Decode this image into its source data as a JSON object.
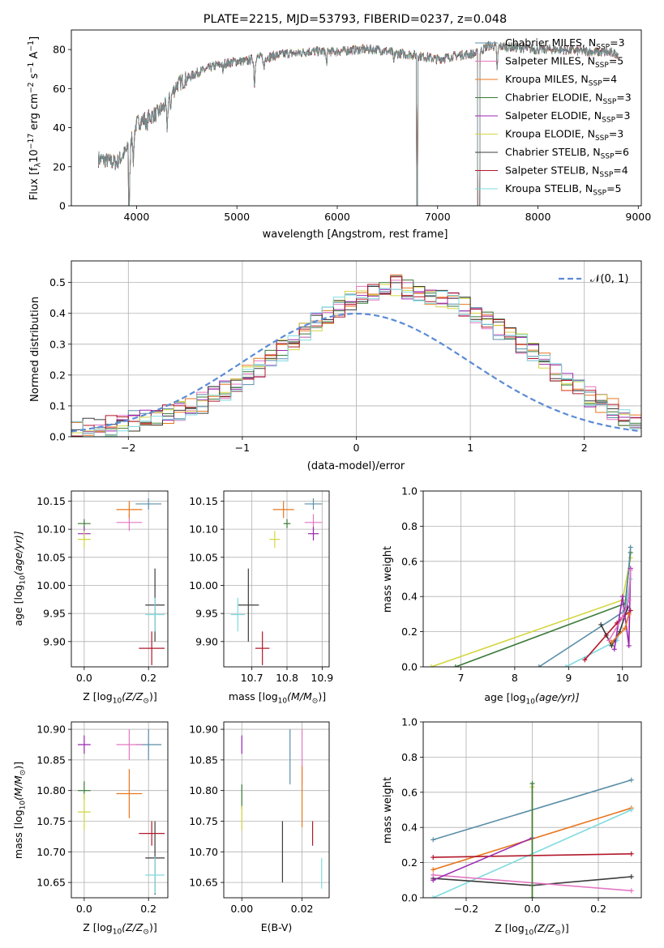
{
  "colors": {
    "Chabrier MILES": "#5b8fa8",
    "Salpeter MILES": "#e377c2",
    "Kroupa MILES": "#e8771e",
    "Chabrier ELODIE": "#3a7a3a",
    "Salpeter ELODIE": "#9b27b0",
    "Kroupa ELODIE": "#d4d640",
    "Chabrier STELIB": "#3c3c3c",
    "Salpeter STELIB": "#b2182b",
    "Kroupa STELIB": "#7fdbe0",
    "gaussian": "#5b8bd6"
  },
  "chart_data": [
    {
      "id": "spectrum",
      "type": "line",
      "title": "PLATE=2215, MJD=53793, FIBERID=0237, z=0.048",
      "xlabel": "wavelength [Angstrom, rest frame]",
      "ylabel": "Flux [f$_\\lambda$10$^{-17}$ erg cm$^{-2}$ s$^{-1}$ A$^{-1}$]",
      "ylabel_parts": [
        "Flux [f",
        "λ",
        "10",
        "−17",
        " erg cm",
        "−2",
        " s",
        "−1",
        " A",
        "−1",
        "]"
      ],
      "xlim": [
        3350,
        9030
      ],
      "ylim": [
        0,
        90
      ],
      "xticks": [
        4000,
        5000,
        6000,
        7000,
        8000,
        9000
      ],
      "yticks": [
        0,
        20,
        40,
        60,
        80
      ],
      "continuum": [
        [
          3620,
          24
        ],
        [
          3800,
          22
        ],
        [
          3900,
          28
        ],
        [
          4000,
          42
        ],
        [
          4100,
          45
        ],
        [
          4200,
          47
        ],
        [
          4300,
          52
        ],
        [
          4400,
          62
        ],
        [
          4500,
          65
        ],
        [
          4600,
          68
        ],
        [
          4700,
          70
        ],
        [
          4800,
          72
        ],
        [
          4900,
          73
        ],
        [
          5000,
          74
        ],
        [
          5100,
          74
        ],
        [
          5200,
          76
        ],
        [
          5300,
          76
        ],
        [
          5400,
          77
        ],
        [
          5500,
          78
        ],
        [
          5600,
          78
        ],
        [
          5700,
          79
        ],
        [
          5800,
          79
        ],
        [
          5900,
          79
        ],
        [
          6000,
          79
        ],
        [
          6200,
          80
        ],
        [
          6400,
          80
        ],
        [
          6600,
          78
        ],
        [
          6800,
          77
        ],
        [
          7000,
          75
        ],
        [
          7100,
          76
        ],
        [
          7200,
          77
        ],
        [
          7400,
          78
        ],
        [
          7500,
          82
        ],
        [
          7800,
          81
        ],
        [
          8000,
          80
        ],
        [
          8200,
          80
        ],
        [
          8500,
          79
        ],
        [
          8800,
          78
        ]
      ],
      "absorption_lines": [
        [
          3934,
          16
        ],
        [
          3969,
          14
        ],
        [
          4101,
          6
        ],
        [
          4304,
          12
        ],
        [
          4340,
          5
        ],
        [
          4861,
          4
        ],
        [
          5175,
          14
        ],
        [
          5270,
          6
        ],
        [
          5893,
          6
        ],
        [
          6563,
          5
        ],
        [
          7594,
          12
        ]
      ],
      "masked_regions": [
        [
          3918,
          3928
        ],
        [
          6790,
          6800
        ],
        [
          7398,
          7420
        ]
      ],
      "series": [
        {
          "name": "Chabrier MILES",
          "nssp": "3"
        },
        {
          "name": "Salpeter MILES",
          "nssp": "5"
        },
        {
          "name": "Kroupa MILES",
          "nssp": "4"
        },
        {
          "name": "Chabrier ELODIE",
          "nssp": "3"
        },
        {
          "name": "Salpeter ELODIE",
          "nssp": "3"
        },
        {
          "name": "Kroupa ELODIE",
          "nssp": "3"
        },
        {
          "name": "Chabrier STELIB",
          "nssp": "6"
        },
        {
          "name": "Salpeter STELIB",
          "nssp": "4"
        },
        {
          "name": "Kroupa STELIB",
          "nssp": "5"
        }
      ],
      "legend_position": "top-right"
    },
    {
      "id": "residuals",
      "type": "step",
      "xlabel": "(data-model)/error",
      "ylabel": "Normed distribution",
      "xlim": [
        -2.5,
        2.5
      ],
      "ylim": [
        0,
        0.57
      ],
      "xticks": [
        -2,
        -1,
        0,
        1,
        2
      ],
      "yticks": [
        0.0,
        0.1,
        0.2,
        0.3,
        0.4,
        0.5
      ],
      "bin_width": 0.1,
      "bin_start": -2.5,
      "base_profile": [
        0.02,
        0.025,
        0.03,
        0.035,
        0.04,
        0.05,
        0.055,
        0.06,
        0.07,
        0.085,
        0.1,
        0.11,
        0.13,
        0.15,
        0.175,
        0.2,
        0.22,
        0.25,
        0.28,
        0.31,
        0.34,
        0.37,
        0.4,
        0.42,
        0.44,
        0.46,
        0.47,
        0.48,
        0.49,
        0.48,
        0.47,
        0.46,
        0.45,
        0.44,
        0.42,
        0.4,
        0.38,
        0.35,
        0.32,
        0.3,
        0.27,
        0.24,
        0.21,
        0.18,
        0.155,
        0.13,
        0.11,
        0.09,
        0.07,
        0.06
      ],
      "gaussian_label": "𝒩(0, 1)",
      "legend_position": "top-right",
      "grid": true
    },
    {
      "id": "age_vs_Z",
      "type": "errorbar",
      "xlabel_parts": [
        "Z [log",
        "10",
        "(Z/Z",
        "⊙",
        ")]"
      ],
      "ylabel_parts": [
        "age  [log",
        "10",
        "(age/yr)]"
      ],
      "xlim": [
        -0.04,
        0.26
      ],
      "ylim": [
        9.855,
        10.168
      ],
      "xticks": [
        0.0,
        0.2
      ],
      "yticks": [
        9.9,
        9.95,
        10.0,
        10.05,
        10.1,
        10.15
      ],
      "grid": true,
      "points": [
        {
          "series": "Chabrier MILES",
          "x": 0.2,
          "xerr": 0.04,
          "y": 10.145,
          "yerr": 0.01
        },
        {
          "series": "Salpeter MILES",
          "x": 0.14,
          "xerr": 0.04,
          "y": 10.112,
          "yerr": 0.015
        },
        {
          "series": "Kroupa MILES",
          "x": 0.14,
          "xerr": 0.04,
          "y": 10.135,
          "yerr": 0.015
        },
        {
          "series": "Chabrier ELODIE",
          "x": 0.0,
          "xerr": 0.02,
          "y": 10.11,
          "yerr": 0.008
        },
        {
          "series": "Salpeter ELODIE",
          "x": 0.0,
          "xerr": 0.02,
          "y": 10.092,
          "yerr": 0.012
        },
        {
          "series": "Kroupa ELODIE",
          "x": 0.0,
          "xerr": 0.02,
          "y": 10.082,
          "yerr": 0.015
        },
        {
          "series": "Chabrier STELIB",
          "x": 0.22,
          "xerr": 0.03,
          "y": 9.965,
          "yerr": 0.065
        },
        {
          "series": "Salpeter STELIB",
          "x": 0.21,
          "xerr": 0.04,
          "y": 9.888,
          "yerr": 0.03
        },
        {
          "series": "Kroupa STELIB",
          "x": 0.22,
          "xerr": 0.03,
          "y": 9.948,
          "yerr": 0.03
        }
      ]
    },
    {
      "id": "age_vs_mass",
      "type": "errorbar",
      "xlabel_parts": [
        "mass [log",
        "10",
        "(M/M",
        "⊙",
        ")]"
      ],
      "ylabel": "",
      "xlim": [
        10.62,
        10.92
      ],
      "ylim": [
        9.855,
        10.168
      ],
      "xticks": [
        10.7,
        10.8,
        10.9
      ],
      "yticks": [
        9.9,
        9.95,
        10.0,
        10.05,
        10.1,
        10.15
      ],
      "grid": true,
      "points": [
        {
          "series": "Chabrier MILES",
          "x": 10.875,
          "xerr": 0.025,
          "y": 10.145,
          "yerr": 0.01
        },
        {
          "series": "Salpeter MILES",
          "x": 10.875,
          "xerr": 0.025,
          "y": 10.112,
          "yerr": 0.015
        },
        {
          "series": "Kroupa MILES",
          "x": 10.79,
          "xerr": 0.03,
          "y": 10.135,
          "yerr": 0.015
        },
        {
          "series": "Chabrier ELODIE",
          "x": 10.8,
          "xerr": 0.01,
          "y": 10.11,
          "yerr": 0.008
        },
        {
          "series": "Salpeter ELODIE",
          "x": 10.875,
          "xerr": 0.015,
          "y": 10.092,
          "yerr": 0.012
        },
        {
          "series": "Kroupa ELODIE",
          "x": 10.765,
          "xerr": 0.015,
          "y": 10.082,
          "yerr": 0.015
        },
        {
          "series": "Chabrier STELIB",
          "x": 10.69,
          "xerr": 0.03,
          "y": 9.965,
          "yerr": 0.065
        },
        {
          "series": "Salpeter STELIB",
          "x": 10.73,
          "xerr": 0.02,
          "y": 9.888,
          "yerr": 0.03
        },
        {
          "series": "Kroupa STELIB",
          "x": 10.66,
          "xerr": 0.02,
          "y": 9.948,
          "yerr": 0.03
        }
      ]
    },
    {
      "id": "mass_vs_Z",
      "type": "errorbar",
      "xlabel_parts": [
        "Z [log",
        "10",
        "(Z/Z",
        "⊙",
        ")]"
      ],
      "ylabel_parts": [
        "mass [log",
        "10",
        "(M/M",
        "⊙",
        ")]"
      ],
      "xlim": [
        -0.04,
        0.26
      ],
      "ylim": [
        10.625,
        10.912
      ],
      "xticks": [
        0.0,
        0.2
      ],
      "yticks": [
        10.65,
        10.7,
        10.75,
        10.8,
        10.85,
        10.9
      ],
      "grid": true,
      "points": [
        {
          "series": "Chabrier MILES",
          "x": 0.2,
          "xerr": 0.04,
          "y": 10.875,
          "yerr": 0.025
        },
        {
          "series": "Salpeter MILES",
          "x": 0.14,
          "xerr": 0.04,
          "y": 10.875,
          "yerr": 0.025
        },
        {
          "series": "Kroupa MILES",
          "x": 0.14,
          "xerr": 0.04,
          "y": 10.795,
          "yerr": 0.04
        },
        {
          "series": "Chabrier ELODIE",
          "x": 0.0,
          "xerr": 0.02,
          "y": 10.8,
          "yerr": 0.015
        },
        {
          "series": "Salpeter ELODIE",
          "x": 0.0,
          "xerr": 0.02,
          "y": 10.875,
          "yerr": 0.015
        },
        {
          "series": "Kroupa ELODIE",
          "x": 0.0,
          "xerr": 0.02,
          "y": 10.765,
          "yerr": 0.03
        },
        {
          "series": "Chabrier STELIB",
          "x": 0.22,
          "xerr": 0.03,
          "y": 10.69,
          "yerr": 0.06
        },
        {
          "series": "Salpeter STELIB",
          "x": 0.21,
          "xerr": 0.04,
          "y": 10.73,
          "yerr": 0.02
        },
        {
          "series": "Kroupa STELIB",
          "x": 0.22,
          "xerr": 0.03,
          "y": 10.662,
          "yerr": 0.03
        }
      ]
    },
    {
      "id": "mass_vs_ebv",
      "type": "errorbar",
      "xlabel": "E(B-V)",
      "ylabel": "",
      "xlim": [
        -0.006,
        0.029
      ],
      "ylim": [
        10.625,
        10.912
      ],
      "xticks": [
        0.0,
        0.02
      ],
      "yticks": [
        10.65,
        10.7,
        10.75,
        10.8,
        10.85,
        10.9
      ],
      "grid": true,
      "points": [
        {
          "series": "Chabrier MILES",
          "x": 0.016,
          "xerr": 0,
          "y": 10.855,
          "yerr": 0.045
        },
        {
          "series": "Salpeter MILES",
          "x": 0.02,
          "xerr": 0,
          "y": 10.855,
          "yerr": 0.045
        },
        {
          "series": "Kroupa MILES",
          "x": 0.02,
          "xerr": 0,
          "y": 10.79,
          "yerr": 0.05
        },
        {
          "series": "Chabrier ELODIE",
          "x": 0.0,
          "xerr": 0,
          "y": 10.79,
          "yerr": 0.02
        },
        {
          "series": "Salpeter ELODIE",
          "x": 0.0,
          "xerr": 0,
          "y": 10.875,
          "yerr": 0.015
        },
        {
          "series": "Kroupa ELODIE",
          "x": 0.0,
          "xerr": 0,
          "y": 10.755,
          "yerr": 0.02
        },
        {
          "series": "Chabrier STELIB",
          "x": 0.0135,
          "xerr": 0,
          "y": 10.7,
          "yerr": 0.05
        },
        {
          "series": "Salpeter STELIB",
          "x": 0.0235,
          "xerr": 0,
          "y": 10.73,
          "yerr": 0.02
        },
        {
          "series": "Kroupa STELIB",
          "x": 0.0265,
          "xerr": 0,
          "y": 10.665,
          "yerr": 0.025
        }
      ]
    },
    {
      "id": "weight_vs_age",
      "type": "line",
      "xlabel_parts": [
        "age  [log",
        "10",
        "(age/yr)]"
      ],
      "ylabel": "mass weight",
      "xlim": [
        6.3,
        10.35
      ],
      "ylim": [
        0,
        1.0
      ],
      "xticks": [
        7,
        8,
        9,
        10
      ],
      "yticks": [
        0.0,
        0.2,
        0.4,
        0.6,
        0.8,
        1.0
      ],
      "grid": true,
      "series": [
        {
          "name": "Kroupa ELODIE",
          "x": [
            6.45,
            10.0,
            10.15
          ],
          "y": [
            0.0,
            0.38,
            0.62
          ]
        },
        {
          "name": "Chabrier ELODIE",
          "x": [
            6.9,
            10.05,
            10.15
          ],
          "y": [
            0.0,
            0.36,
            0.65
          ]
        },
        {
          "name": "Chabrier MILES",
          "x": [
            8.45,
            10.05,
            10.15
          ],
          "y": [
            0.0,
            0.32,
            0.68
          ]
        },
        {
          "name": "Kroupa STELIB",
          "x": [
            8.95,
            9.9,
            10.05,
            10.15
          ],
          "y": [
            0.0,
            0.15,
            0.3,
            0.5
          ]
        },
        {
          "name": "Salpeter STELIB",
          "x": [
            9.3,
            9.7,
            9.9,
            10.0,
            10.15
          ],
          "y": [
            0.04,
            0.18,
            0.25,
            0.28,
            0.32
          ]
        },
        {
          "name": "Chabrier STELIB",
          "x": [
            9.6,
            9.8,
            9.95,
            10.1
          ],
          "y": [
            0.24,
            0.12,
            0.2,
            0.34
          ]
        },
        {
          "name": "Salpeter ELODIE",
          "x": [
            9.85,
            10.0,
            10.12,
            10.15
          ],
          "y": [
            0.1,
            0.4,
            0.12,
            0.56
          ]
        },
        {
          "name": "Salpeter MILES",
          "x": [
            9.75,
            10.0,
            10.12,
            10.15
          ],
          "y": [
            0.15,
            0.28,
            0.38,
            0.55
          ]
        },
        {
          "name": "Kroupa MILES",
          "x": [
            9.8,
            10.05,
            10.12
          ],
          "y": [
            0.14,
            0.22,
            0.3
          ]
        }
      ]
    },
    {
      "id": "weight_vs_Z",
      "type": "line",
      "xlabel_parts": [
        "Z [log",
        "10",
        "(Z/Z",
        "⊙",
        ")]"
      ],
      "ylabel": "mass weight",
      "xlim": [
        -0.33,
        0.33
      ],
      "ylim": [
        0,
        1.0
      ],
      "xticks": [
        -0.2,
        0.0,
        0.2
      ],
      "yticks": [
        0.0,
        0.2,
        0.4,
        0.6,
        0.8,
        1.0
      ],
      "grid": true,
      "series": [
        {
          "name": "Chabrier MILES",
          "x": [
            -0.3,
            0.3
          ],
          "y": [
            0.33,
            0.67
          ]
        },
        {
          "name": "Kroupa MILES",
          "x": [
            -0.3,
            0.3
          ],
          "y": [
            0.16,
            0.51
          ]
        },
        {
          "name": "Kroupa STELIB",
          "x": [
            -0.3,
            0.3
          ],
          "y": [
            0.0,
            0.5
          ]
        },
        {
          "name": "Salpeter STELIB",
          "x": [
            -0.3,
            0.3
          ],
          "y": [
            0.23,
            0.25
          ]
        },
        {
          "name": "Chabrier STELIB",
          "x": [
            -0.3,
            0.0,
            0.3
          ],
          "y": [
            0.11,
            0.07,
            0.12
          ]
        },
        {
          "name": "Salpeter MILES",
          "x": [
            -0.3,
            0.3
          ],
          "y": [
            0.13,
            0.04
          ]
        },
        {
          "name": "Salpeter ELODIE",
          "x": [
            -0.3,
            0.0
          ],
          "y": [
            0.1,
            0.34
          ]
        },
        {
          "name": "Kroupa ELODIE",
          "x": [
            0.0,
            0.0
          ],
          "y": [
            0.0,
            0.63
          ]
        },
        {
          "name": "Chabrier ELODIE",
          "x": [
            0.0,
            0.0
          ],
          "y": [
            0.0,
            0.65
          ]
        }
      ]
    }
  ]
}
